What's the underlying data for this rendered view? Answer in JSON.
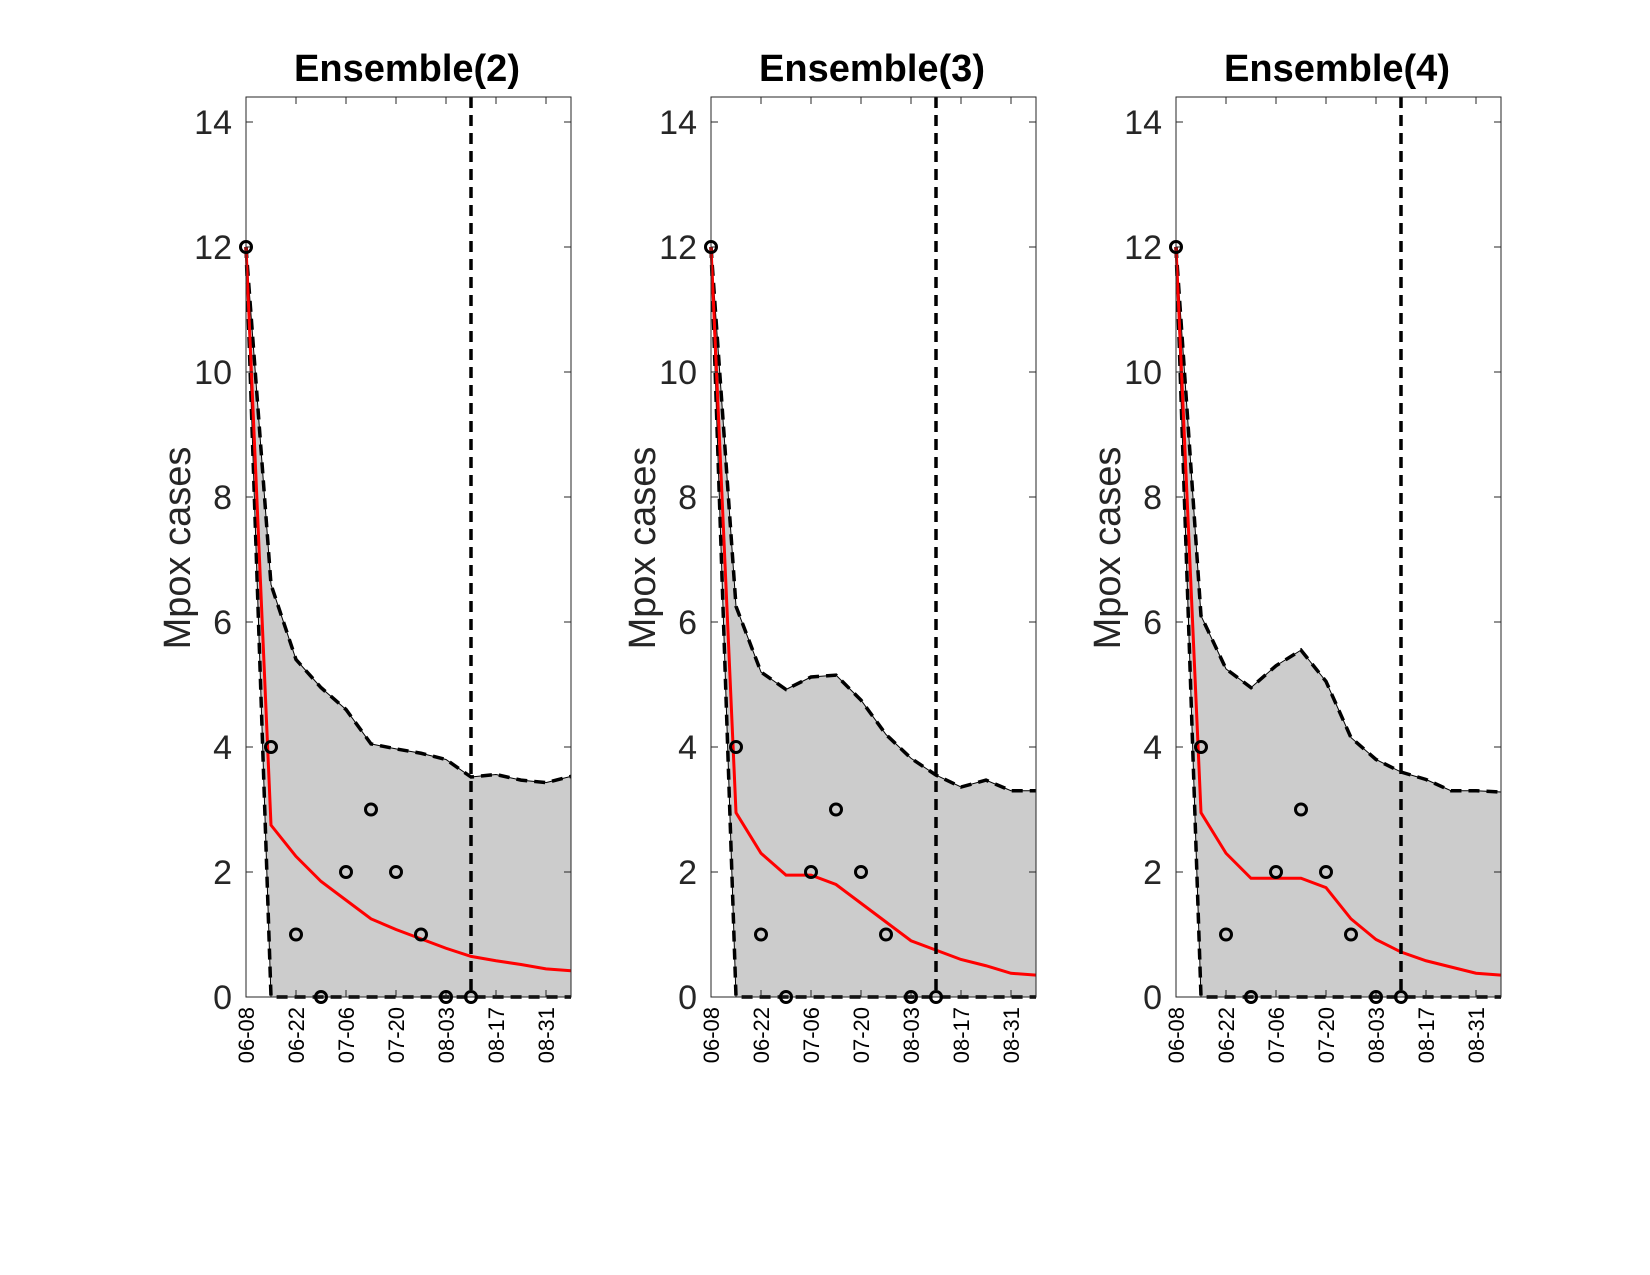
{
  "colors": {
    "band_fill": "#cccccc",
    "median_line": "#ff0000",
    "bounds": "#000000",
    "observed": "#000000",
    "axes": "#262626"
  },
  "chart_data": [
    {
      "type": "line",
      "title": "Ensemble(2)",
      "ylabel": "Mpox cases",
      "xlabel": "",
      "x": [
        "06-08",
        "06-15",
        "06-22",
        "06-29",
        "07-06",
        "07-13",
        "07-20",
        "07-27",
        "08-03",
        "08-10",
        "08-17",
        "08-24",
        "08-31",
        "09-07"
      ],
      "xtick_labels": [
        "06-08",
        "06-22",
        "07-06",
        "07-20",
        "08-03",
        "08-17",
        "08-31"
      ],
      "ylim": [
        0,
        14.4
      ],
      "yticks": [
        0,
        2,
        4,
        6,
        8,
        10,
        12,
        14
      ],
      "forecast_start": "08-10",
      "median": [
        12.0,
        2.75,
        2.25,
        1.85,
        1.55,
        1.25,
        1.08,
        0.93,
        0.78,
        0.65,
        0.58,
        0.52,
        0.45,
        0.42
      ],
      "upper": [
        12.0,
        6.6,
        5.4,
        4.95,
        4.6,
        4.05,
        3.97,
        3.9,
        3.8,
        3.52,
        3.56,
        3.47,
        3.43,
        3.53
      ],
      "lower": [
        12.0,
        0,
        0,
        0,
        0,
        0,
        0,
        0,
        0,
        0,
        0,
        0,
        0,
        0
      ],
      "observed": [
        12,
        4,
        1,
        0,
        2,
        3,
        2,
        1,
        0,
        0
      ]
    },
    {
      "type": "line",
      "title": "Ensemble(3)",
      "ylabel": "Mpox cases",
      "xlabel": "",
      "x": [
        "06-08",
        "06-15",
        "06-22",
        "06-29",
        "07-06",
        "07-13",
        "07-20",
        "07-27",
        "08-03",
        "08-10",
        "08-17",
        "08-24",
        "08-31",
        "09-07"
      ],
      "xtick_labels": [
        "06-08",
        "06-22",
        "07-06",
        "07-20",
        "08-03",
        "08-17",
        "08-31"
      ],
      "ylim": [
        0,
        14.4
      ],
      "yticks": [
        0,
        2,
        4,
        6,
        8,
        10,
        12,
        14
      ],
      "forecast_start": "08-10",
      "median": [
        12.0,
        2.95,
        2.3,
        1.95,
        1.95,
        1.8,
        1.5,
        1.2,
        0.9,
        0.75,
        0.6,
        0.5,
        0.38,
        0.35
      ],
      "upper": [
        12.0,
        6.25,
        5.2,
        4.92,
        5.12,
        5.15,
        4.75,
        4.2,
        3.82,
        3.55,
        3.36,
        3.47,
        3.3,
        3.3
      ],
      "lower": [
        12.0,
        0,
        0,
        0,
        0,
        0,
        0,
        0,
        0,
        0,
        0,
        0,
        0,
        0
      ],
      "observed": [
        12,
        4,
        1,
        0,
        2,
        3,
        2,
        1,
        0,
        0
      ]
    },
    {
      "type": "line",
      "title": "Ensemble(4)",
      "ylabel": "Mpox cases",
      "xlabel": "",
      "x": [
        "06-08",
        "06-15",
        "06-22",
        "06-29",
        "07-06",
        "07-13",
        "07-20",
        "07-27",
        "08-03",
        "08-10",
        "08-17",
        "08-24",
        "08-31",
        "09-07"
      ],
      "xtick_labels": [
        "06-08",
        "06-22",
        "07-06",
        "07-20",
        "08-03",
        "08-17",
        "08-31"
      ],
      "ylim": [
        0,
        14.4
      ],
      "yticks": [
        0,
        2,
        4,
        6,
        8,
        10,
        12,
        14
      ],
      "forecast_start": "08-10",
      "median": [
        12.0,
        2.95,
        2.3,
        1.9,
        1.9,
        1.9,
        1.75,
        1.25,
        0.92,
        0.72,
        0.58,
        0.48,
        0.38,
        0.35
      ],
      "upper": [
        12.0,
        6.1,
        5.25,
        4.95,
        5.3,
        5.55,
        5.05,
        4.15,
        3.8,
        3.6,
        3.48,
        3.3,
        3.3,
        3.28
      ],
      "lower": [
        12.0,
        0,
        0,
        0,
        0,
        0,
        0,
        0,
        0,
        0,
        0,
        0,
        0,
        0
      ],
      "observed": [
        12,
        4,
        1,
        0,
        2,
        3,
        2,
        1,
        0,
        0
      ]
    }
  ]
}
